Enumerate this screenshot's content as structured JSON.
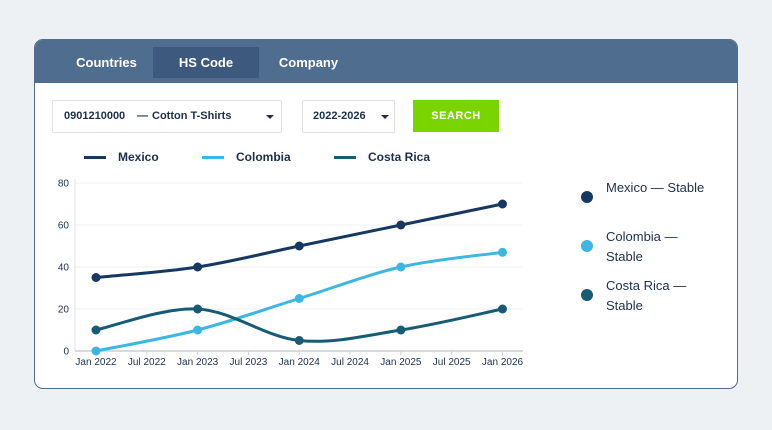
{
  "tabs": [
    {
      "label": "Countries",
      "active": false
    },
    {
      "label": "HS Code",
      "active": true
    },
    {
      "label": "Company",
      "active": false
    }
  ],
  "filters": {
    "hs_code": {
      "code": "0901210000",
      "separator": "—",
      "product": "Cotton T-Shirts"
    },
    "date_range": {
      "value": "2022-2026"
    },
    "search_label": "SEARCH"
  },
  "colors": {
    "mexico": "#163862",
    "colombia": "#3cb7e3",
    "costa_rica": "#175b75",
    "search_button": "#7ad400",
    "tab_bar": "#4f6d8f"
  },
  "legend_top": [
    "Mexico",
    "Colombia",
    "Costa Rica"
  ],
  "legend_side": [
    {
      "label": "Mexico — Stable",
      "color": "#163862"
    },
    {
      "label": "Colombia — Stable",
      "color": "#3cb7e3"
    },
    {
      "label": "Costa Rica — Stable",
      "color": "#175b75"
    }
  ],
  "chart_data": {
    "type": "line",
    "x_ticks": [
      "Jan 2022",
      "Jul 2022",
      "Jan 2023",
      "Jul 2023",
      "Jan 2024",
      "Jul 2024",
      "Jan 2025",
      "Jul 2025",
      "Jan 2026"
    ],
    "x_points": [
      "Jan 2022",
      "Jan 2023",
      "Jan 2024",
      "Jan 2025",
      "Jan 2026"
    ],
    "y_ticks": [
      0,
      20,
      40,
      60,
      80
    ],
    "ylim": [
      0,
      80
    ],
    "grid": true,
    "series": [
      {
        "name": "Mexico",
        "color": "#163862",
        "values": [
          35,
          40,
          50,
          60,
          70
        ]
      },
      {
        "name": "Colombia",
        "color": "#3cb7e3",
        "values": [
          0,
          10,
          25,
          40,
          47
        ]
      },
      {
        "name": "Costa Rica",
        "color": "#175b75",
        "values": [
          10,
          20,
          5,
          10,
          20
        ]
      }
    ]
  }
}
